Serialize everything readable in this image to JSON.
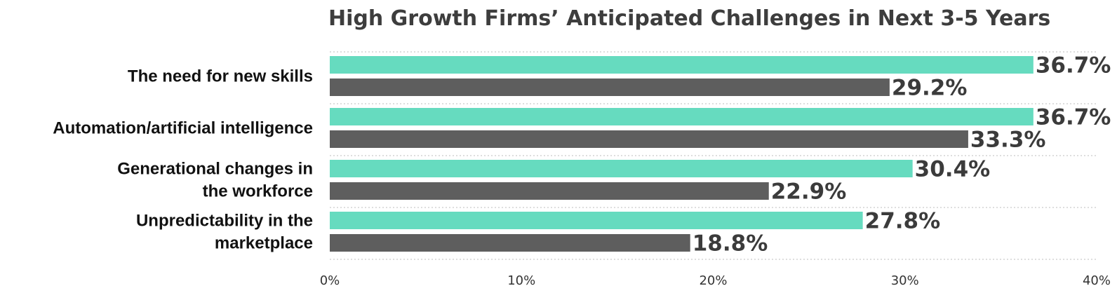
{
  "chart_data": {
    "type": "bar",
    "orientation": "horizontal",
    "title": "High Growth Firms’ Anticipated Challenges in Next 3-5 Years",
    "categories": [
      [
        "The need for new skills"
      ],
      [
        "Automation/artificial intelligence"
      ],
      [
        "Generational changes in",
        "the workforce"
      ],
      [
        "Unpredictability in the",
        "marketplace"
      ]
    ],
    "series": [
      {
        "values": [
          36.7,
          36.7,
          30.4,
          27.8
        ],
        "labels": [
          "36.7%",
          "36.7%",
          "30.4%",
          "27.8%"
        ],
        "color": "#66dbbf"
      },
      {
        "values": [
          29.2,
          33.3,
          22.9,
          18.8
        ],
        "labels": [
          "29.2%",
          "33.3%",
          "22.9%",
          "18.8%"
        ],
        "color": "#5e5e5e"
      }
    ],
    "xlim": [
      0,
      40
    ],
    "xticks": [
      0,
      10,
      20,
      30,
      40
    ],
    "xtick_labels": [
      "0%",
      "10%",
      "20%",
      "30%",
      "40%"
    ],
    "grid": true,
    "legend": "none"
  }
}
